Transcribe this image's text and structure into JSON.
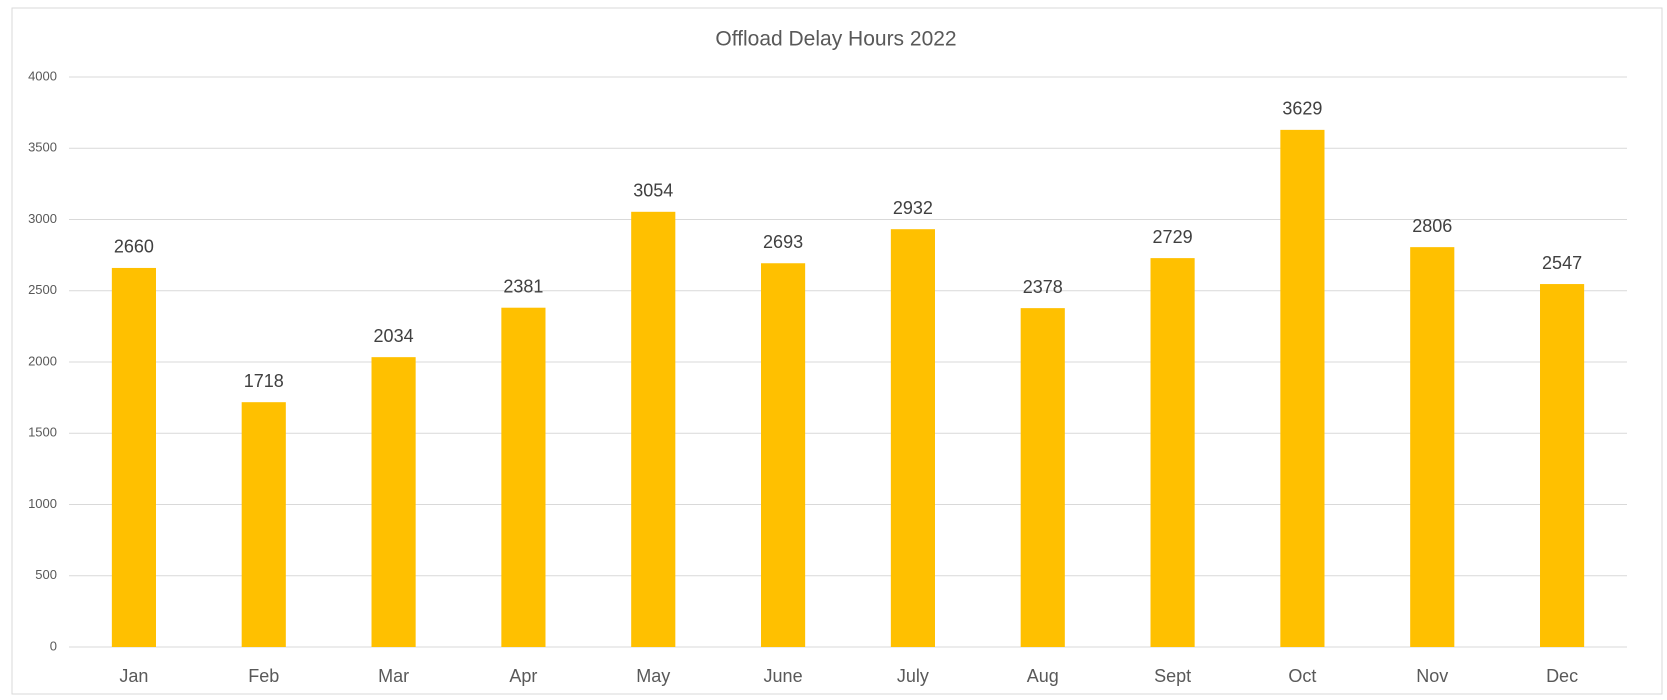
{
  "chart_data": {
    "type": "bar",
    "title": "Offload Delay Hours 2022",
    "categories": [
      "Jan",
      "Feb",
      "Mar",
      "Apr",
      "May",
      "June",
      "July",
      "Aug",
      "Sept",
      "Oct",
      "Nov",
      "Dec"
    ],
    "values": [
      2660,
      1718,
      2034,
      2381,
      3054,
      2693,
      2932,
      2378,
      2729,
      3629,
      2806,
      2547
    ],
    "color": "#ffc000",
    "ylim": [
      0,
      4000
    ],
    "yticks": [
      0,
      500,
      1000,
      1500,
      2000,
      2500,
      3000,
      3500,
      4000
    ],
    "grid": true,
    "data_labels": true
  }
}
